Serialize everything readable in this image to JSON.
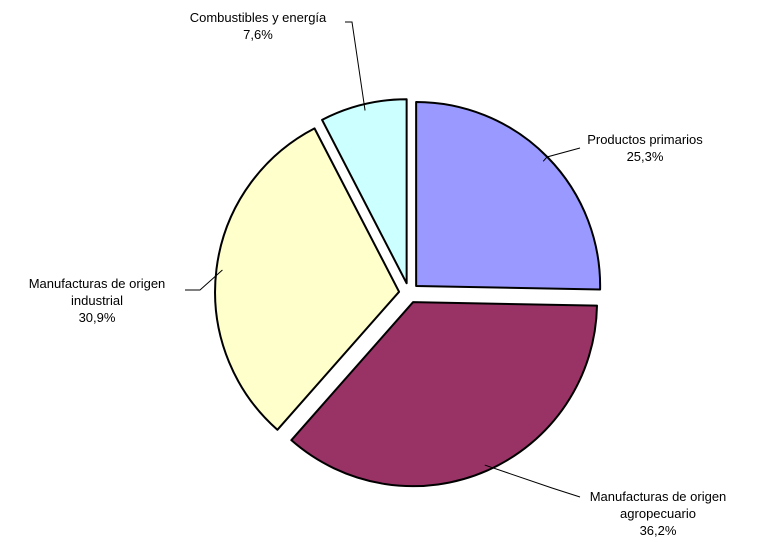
{
  "chart_data": {
    "type": "pie",
    "title": "",
    "legend": "none",
    "exploded": true,
    "slices": [
      {
        "lines": [
          "Productos primarios"
        ],
        "value_label": "25,3%",
        "value": 25.3,
        "color": "#9999ff"
      },
      {
        "lines": [
          "Manufacturas de origen",
          "agropecuario"
        ],
        "value_label": "36,2%",
        "value": 36.2,
        "color": "#993366"
      },
      {
        "lines": [
          "Manufacturas de origen",
          "industrial"
        ],
        "value_label": "30,9%",
        "value": 30.9,
        "color": "#ffffcc"
      },
      {
        "lines": [
          "Combustibles y energía"
        ],
        "value_label": "7,6%",
        "value": 7.6,
        "color": "#ccffff"
      }
    ]
  }
}
